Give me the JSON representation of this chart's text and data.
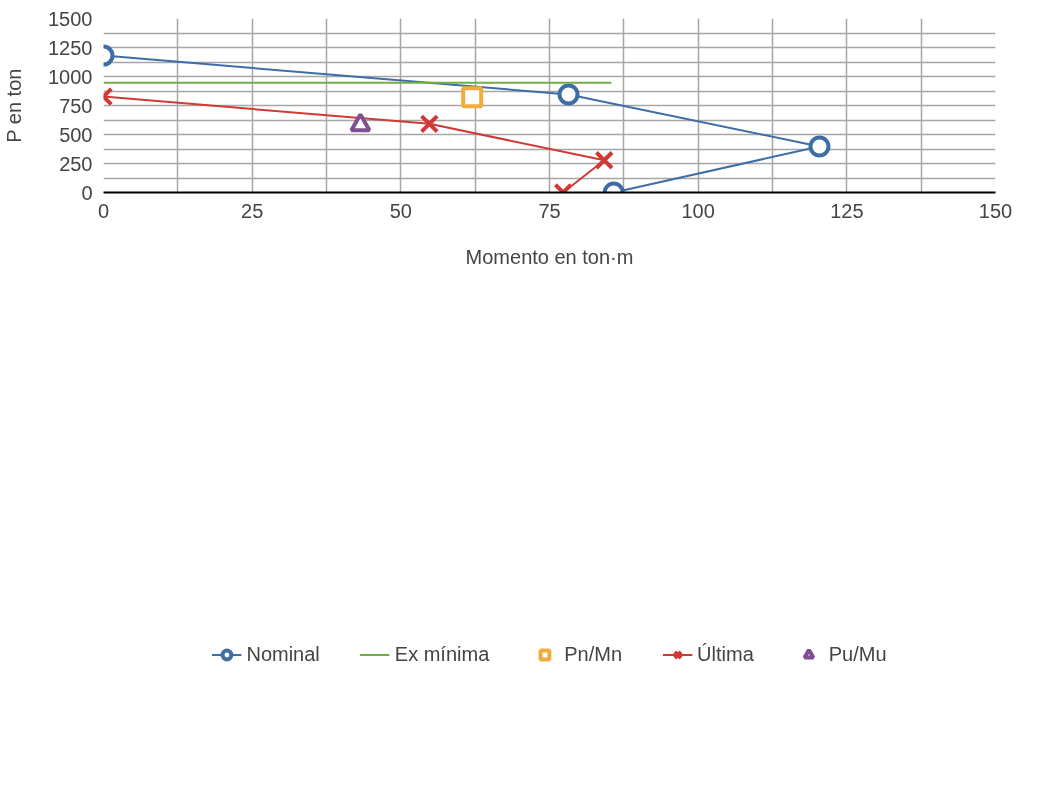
{
  "chart_data": {
    "type": "line",
    "xlabel": "Momento en ton·m",
    "ylabel": "P en ton",
    "xlim": [
      0,
      150
    ],
    "ylim": [
      0,
      1500
    ],
    "xticks": [
      0,
      {
        "value": 12.5,
        "label": null
      },
      25,
      {
        "value": 37.5,
        "label": null
      },
      50,
      {
        "value": 62.5,
        "label": null
      },
      75,
      {
        "value": 87.5,
        "label": null
      },
      100,
      {
        "value": 112.5,
        "label": null
      },
      125,
      {
        "value": 137.5,
        "label": null
      },
      150
    ],
    "yticks": [
      0,
      {
        "value": 125,
        "label": null
      },
      250,
      {
        "value": 375,
        "label": null
      },
      500,
      {
        "value": 625,
        "label": null
      },
      750,
      {
        "value": 875,
        "label": null
      },
      1000,
      {
        "value": 1125,
        "label": null
      },
      1250,
      {
        "value": 1375,
        "label": null
      },
      1500
    ],
    "grid": true,
    "legend": "bottom",
    "tick_labels": "xy",
    "series": [
      {
        "name": "Nominal",
        "marker": "circle",
        "color": "#3e6ea5",
        "x": [
          0,
          78.2,
          120.4,
          85.8
        ],
        "values": [
          1180,
          845,
          397,
          0
        ]
      },
      {
        "name": "Ex mínima",
        "marker": "none",
        "color": "#70ad47",
        "x": [
          0,
          85.4
        ],
        "values": [
          946,
          946
        ]
      },
      {
        "name": "Pn/Mn",
        "type": "scatter",
        "marker": "square",
        "color": "#f0ad3c",
        "x": [
          62
        ],
        "values": [
          822
        ]
      },
      {
        "name": "Última",
        "marker": "cross",
        "color": "#d03a34",
        "x": [
          0,
          54.8,
          84.2,
          77.3
        ],
        "values": [
          827,
          592,
          278,
          0
        ]
      },
      {
        "name": "Pu/Mu",
        "type": "scatter",
        "marker": "triangle",
        "color": "#7f4f93",
        "x": [
          43.2
        ],
        "values": [
          582
        ]
      }
    ]
  }
}
